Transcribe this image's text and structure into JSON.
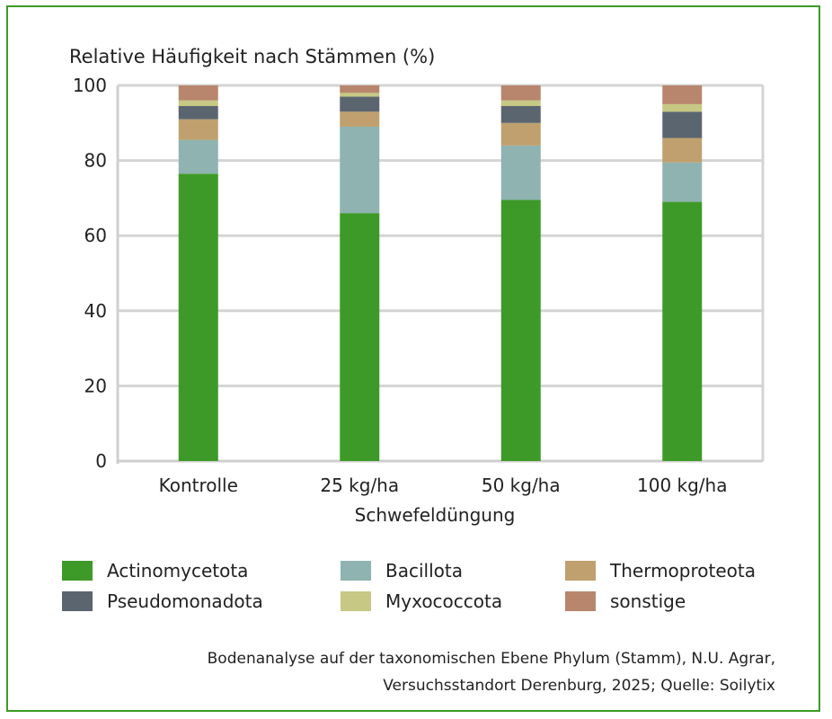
{
  "chart_data": {
    "type": "bar",
    "stacked": true,
    "title": "Relative Häufigkeit nach Stämmen (%)",
    "xlabel": "Schwefeldüngung",
    "ylabel": "",
    "categories": [
      "Kontrolle",
      "25 kg/ha",
      "50 kg/ha",
      "100 kg/ha"
    ],
    "ylim": [
      0,
      100
    ],
    "yticks": [
      0,
      20,
      40,
      60,
      80,
      100
    ],
    "grid": true,
    "legend_position": "bottom",
    "series": [
      {
        "name": "Actinomycetota",
        "color": "#3d9a28",
        "values": [
          76.5,
          66.0,
          69.5,
          69.0
        ]
      },
      {
        "name": "Bacillota",
        "color": "#8fb3b0",
        "values": [
          9.0,
          23.0,
          14.5,
          10.5
        ]
      },
      {
        "name": "Thermoproteota",
        "color": "#bfa06e",
        "values": [
          5.5,
          4.0,
          6.0,
          6.5
        ]
      },
      {
        "name": "Pseudomonadota",
        "color": "#5b6570",
        "values": [
          3.5,
          4.0,
          4.5,
          7.0
        ]
      },
      {
        "name": "Myxococcota",
        "color": "#c6c883",
        "values": [
          1.5,
          1.0,
          1.5,
          2.0
        ]
      },
      {
        "name": "sonstige",
        "color": "#b8866c",
        "values": [
          4.0,
          2.0,
          4.0,
          5.0
        ]
      }
    ]
  },
  "source": {
    "line1": "Bodenanalyse auf der taxonomischen Ebene Phylum (Stamm), N.U. Agrar,",
    "line2": "Versuchsstandort Derenburg, 2025; Quelle: Soilytix"
  }
}
